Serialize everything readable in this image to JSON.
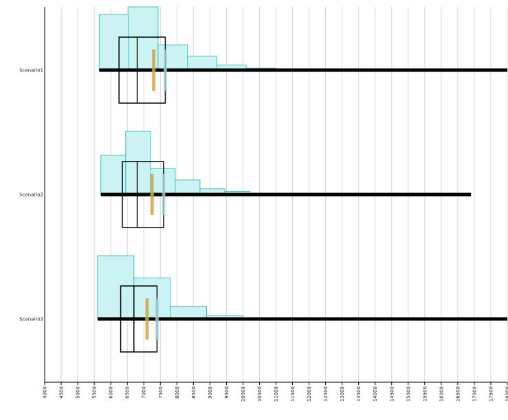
{
  "chart_data": {
    "type": "box",
    "orientation": "horizontal",
    "title": "",
    "xlabel": "",
    "ylabel": "",
    "xlim": [
      4000,
      18000
    ],
    "x_ticks": [
      4000,
      4500,
      5000,
      5500,
      6000,
      6500,
      7000,
      7500,
      8000,
      8500,
      9000,
      9500,
      10000,
      10500,
      11000,
      11500,
      12000,
      12500,
      13000,
      13500,
      14000,
      14500,
      15000,
      15500,
      16000,
      16500,
      17000,
      17500,
      18000
    ],
    "x_tick_labels": [
      "4000",
      "4500",
      "5000",
      "5500",
      "6000",
      "6500",
      "7000",
      "7500",
      "8000",
      "8500",
      "9000",
      "9500",
      "10000",
      "10500",
      "11000",
      "11500",
      "12000",
      "12500",
      "13000",
      "13500",
      "14000",
      "14500",
      "15000",
      "15500",
      "16000",
      "16500",
      "17000",
      "17500",
      "18000"
    ],
    "grid": "vertical",
    "colors": {
      "histogram_fill": "#c8f2f2",
      "histogram_stroke": "#3cc4c4",
      "box_stroke": "#000000",
      "whisker": "#000000",
      "mean_bar": "#d4a14a",
      "mean_dot": "#8fa33a",
      "ci_bar": "#a9d4dc",
      "grid": "#d6d6d6"
    },
    "series": [
      {
        "name": "Scenario1",
        "min": 5650,
        "q1": 6250,
        "median": 6800,
        "q3": 7650,
        "max": 18000,
        "mean": 7300,
        "mean_range": [
          7250,
          7350
        ],
        "ci_range": [
          7600,
          7700
        ],
        "histogram": {
          "edges": [
            5650,
            6540,
            7430,
            8320,
            9210,
            10100,
            10990,
            11880,
            12770,
            13660,
            14550,
            15440,
            16330,
            17220,
            18110
          ],
          "heights": [
            0.88,
            1.0,
            0.4,
            0.22,
            0.08,
            0.03,
            0.02,
            0.02,
            0.01,
            0.01,
            0.005,
            0.005,
            0.005,
            0.005
          ]
        }
      },
      {
        "name": "Scenario2",
        "min": 5700,
        "q1": 6350,
        "median": 6800,
        "q3": 7600,
        "max": 16900,
        "mean": 7250,
        "mean_range": [
          7200,
          7300
        ],
        "ci_range": [
          7550,
          7650
        ],
        "histogram": {
          "edges": [
            5700,
            6450,
            7200,
            7950,
            8700,
            9450,
            10200,
            10950,
            11700,
            12450
          ],
          "heights": [
            0.62,
            1.0,
            0.41,
            0.23,
            0.09,
            0.05,
            0.02,
            0.02,
            0.01
          ]
        }
      },
      {
        "name": "Scenario3",
        "min": 5600,
        "q1": 6300,
        "median": 6700,
        "q3": 7400,
        "max": 18000,
        "mean": 7100,
        "mean_range": [
          7050,
          7150
        ],
        "ci_range": [
          7350,
          7450
        ],
        "histogram": {
          "edges": [
            5600,
            6700,
            7800,
            8900,
            10000,
            11100,
            12200,
            13300
          ],
          "heights": [
            1.0,
            0.65,
            0.2,
            0.05,
            0.02,
            0.01,
            0.005
          ]
        }
      }
    ]
  }
}
